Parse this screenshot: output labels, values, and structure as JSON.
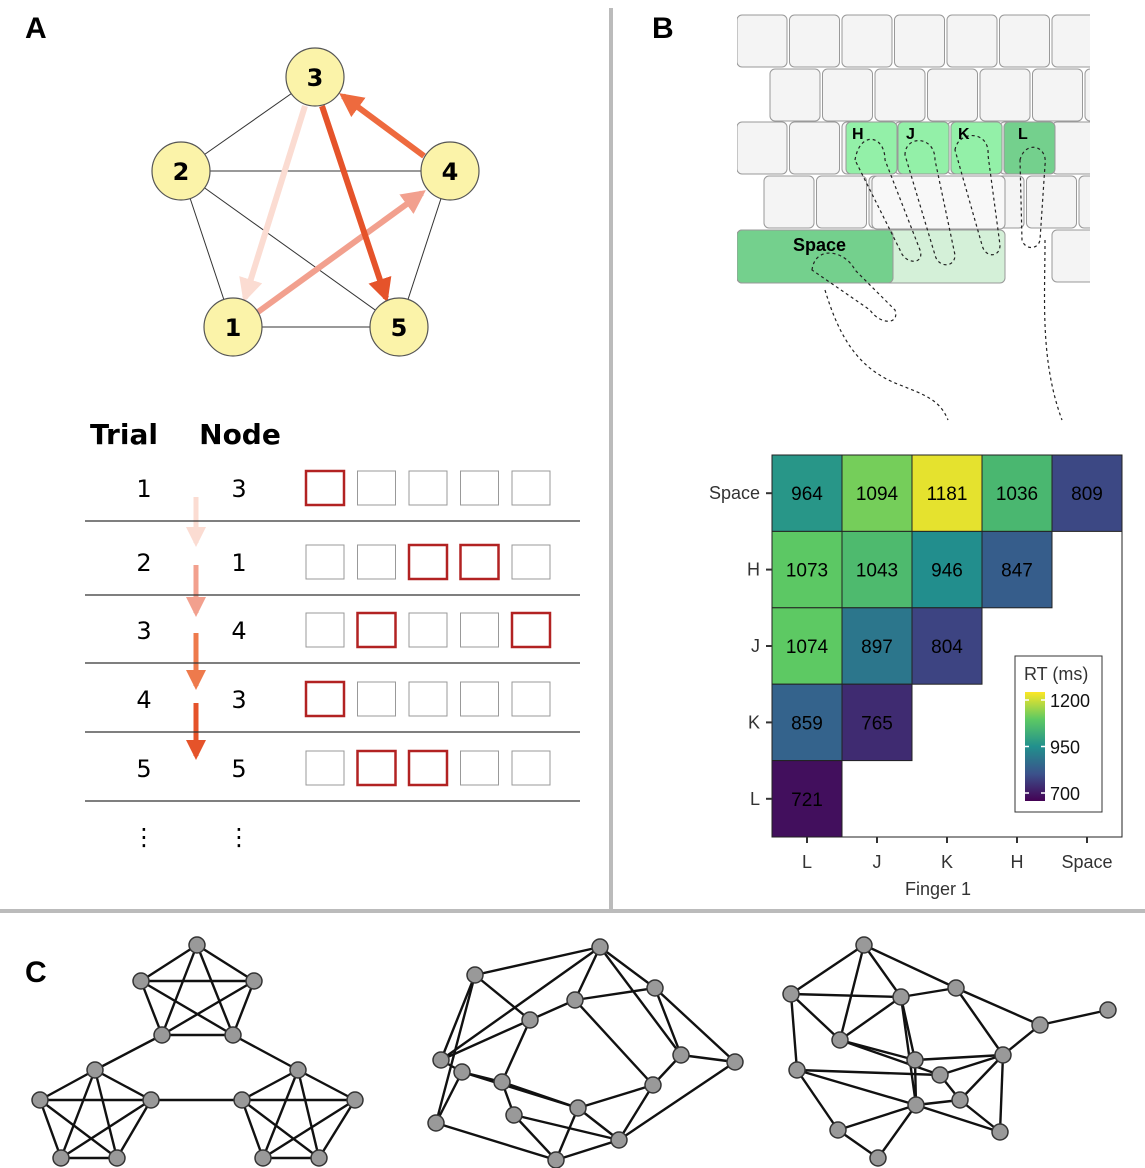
{
  "panel_labels": [
    "A",
    "B",
    "C"
  ],
  "graph": {
    "nodes": [
      {
        "label": "1"
      },
      {
        "label": "2"
      },
      {
        "label": "3"
      },
      {
        "label": "4"
      },
      {
        "label": "5"
      }
    ]
  },
  "trial_table": {
    "headers": [
      "Trial",
      "Node"
    ],
    "rows": [
      [
        "1",
        "3"
      ],
      [
        "2",
        "1"
      ],
      [
        "3",
        "4"
      ],
      [
        "4",
        "3"
      ],
      [
        "5",
        "5"
      ]
    ],
    "ellipsis": [
      "⋮",
      "⋮"
    ]
  },
  "keyboard": {
    "keys": [
      "H",
      "J",
      "K",
      "L"
    ],
    "space": "Space"
  },
  "chart_data": {
    "type": "heatmap",
    "x_label": "Finger 1",
    "x_categories": [
      "L",
      "J",
      "K",
      "H",
      "Space"
    ],
    "y_categories": [
      "Space",
      "H",
      "J",
      "K",
      "L"
    ],
    "values": [
      [
        964,
        1094,
        1181,
        1036,
        809
      ],
      [
        1073,
        1043,
        946,
        847,
        null
      ],
      [
        1074,
        897,
        804,
        null,
        null
      ],
      [
        859,
        765,
        null,
        null,
        null
      ],
      [
        721,
        null,
        null,
        null,
        null
      ]
    ],
    "legend_title": "RT (ms)",
    "colorbar_ticks": [
      700,
      950,
      1200
    ],
    "colormap": "viridis"
  }
}
